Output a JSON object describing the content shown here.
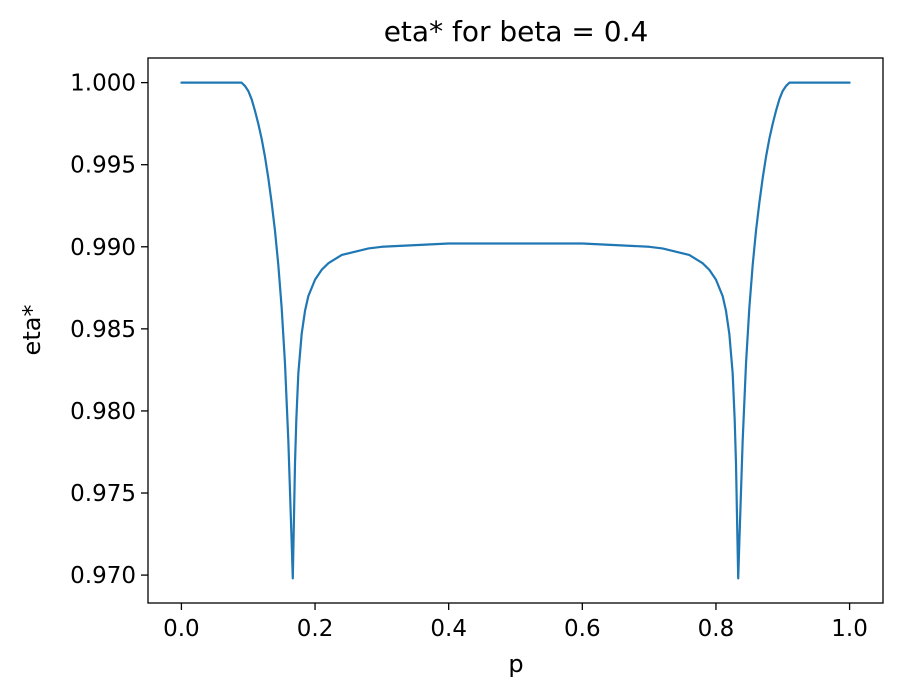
{
  "chart_data": {
    "type": "line",
    "title": "eta* for beta = 0.4",
    "xlabel": "p",
    "ylabel": "eta*",
    "xlim": [
      -0.05,
      1.05
    ],
    "ylim": [
      0.9683,
      1.0015
    ],
    "xticks": [
      0.0,
      0.2,
      0.4,
      0.6,
      0.8,
      1.0
    ],
    "xtick_labels": [
      "0.0",
      "0.2",
      "0.4",
      "0.6",
      "0.8",
      "1.0"
    ],
    "yticks": [
      0.97,
      0.975,
      0.98,
      0.985,
      0.99,
      0.995,
      1.0
    ],
    "ytick_labels": [
      "0.970",
      "0.975",
      "0.980",
      "0.985",
      "0.990",
      "0.995",
      "1.000"
    ],
    "grid": false,
    "series": [
      {
        "color": "#1f77b4",
        "x": [
          0.0,
          0.02,
          0.04,
          0.06,
          0.08,
          0.09,
          0.095,
          0.1,
          0.105,
          0.11,
          0.115,
          0.12,
          0.125,
          0.13,
          0.135,
          0.14,
          0.145,
          0.15,
          0.155,
          0.16,
          0.163,
          0.165,
          0.1667,
          0.168,
          0.17,
          0.172,
          0.175,
          0.18,
          0.185,
          0.19,
          0.2,
          0.21,
          0.22,
          0.24,
          0.26,
          0.28,
          0.3,
          0.35,
          0.4,
          0.45,
          0.5,
          0.55,
          0.6,
          0.65,
          0.7,
          0.72,
          0.74,
          0.76,
          0.78,
          0.79,
          0.8,
          0.81,
          0.815,
          0.82,
          0.825,
          0.828,
          0.83,
          0.832,
          0.8333,
          0.835,
          0.837,
          0.84,
          0.845,
          0.85,
          0.855,
          0.86,
          0.865,
          0.87,
          0.875,
          0.88,
          0.885,
          0.89,
          0.895,
          0.9,
          0.905,
          0.91,
          0.92,
          0.94,
          0.96,
          0.98,
          1.0
        ],
        "y": [
          1.0,
          1.0,
          1.0,
          1.0,
          1.0,
          1.0,
          0.9998,
          0.9995,
          0.999,
          0.9983,
          0.9975,
          0.9966,
          0.9955,
          0.9942,
          0.9927,
          0.991,
          0.9889,
          0.9863,
          0.9829,
          0.9782,
          0.9745,
          0.972,
          0.9698,
          0.9725,
          0.9768,
          0.9795,
          0.9823,
          0.9847,
          0.9861,
          0.987,
          0.988,
          0.9886,
          0.989,
          0.9895,
          0.9897,
          0.9899,
          0.99,
          0.9901,
          0.9902,
          0.9902,
          0.9902,
          0.9902,
          0.9902,
          0.9901,
          0.99,
          0.9899,
          0.9897,
          0.9895,
          0.989,
          0.9886,
          0.988,
          0.987,
          0.9861,
          0.9847,
          0.9823,
          0.9795,
          0.9768,
          0.9725,
          0.9698,
          0.972,
          0.9745,
          0.9782,
          0.9829,
          0.9863,
          0.9889,
          0.991,
          0.9927,
          0.9942,
          0.9955,
          0.9966,
          0.9975,
          0.9983,
          0.999,
          0.9995,
          0.9998,
          1.0,
          1.0,
          1.0,
          1.0,
          1.0,
          1.0
        ]
      }
    ]
  }
}
